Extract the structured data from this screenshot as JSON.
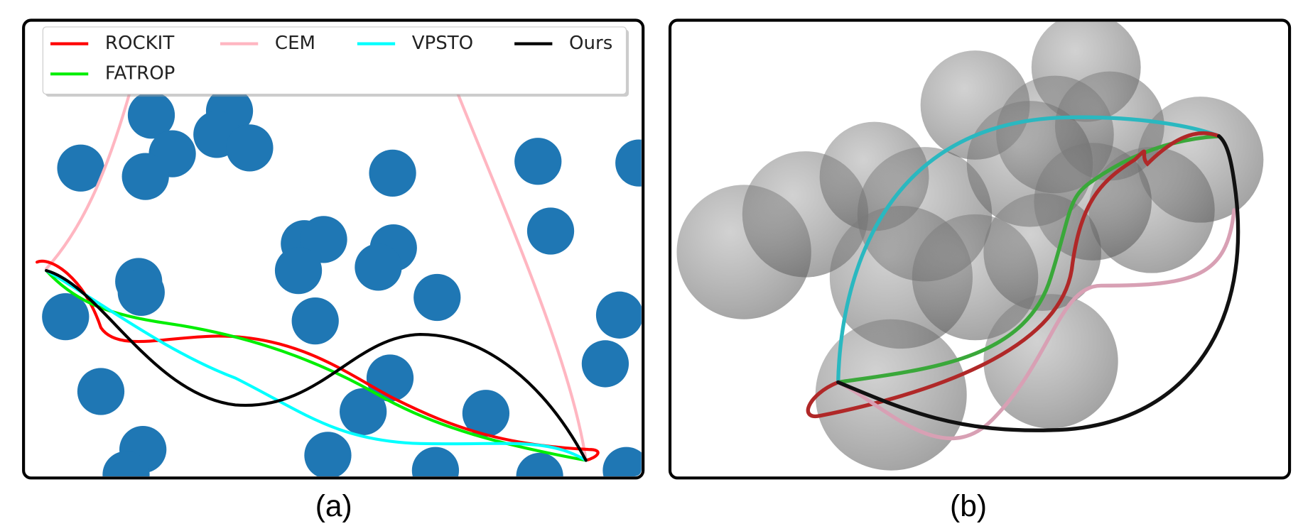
{
  "panels": [
    {
      "legend": [
        {
          "name": "ROCKIT",
          "color": "#ff0000"
        },
        {
          "name": "CEM",
          "color": "#ffb6c1"
        },
        {
          "name": "VPSTO",
          "color": "#00ffff"
        },
        {
          "name": "Ours",
          "color": "#000000"
        },
        {
          "name": "FATROP",
          "color": "#00ee00"
        }
      ],
      "caption": "(a)"
    },
    {
      "caption": "(b)"
    }
  ]
}
